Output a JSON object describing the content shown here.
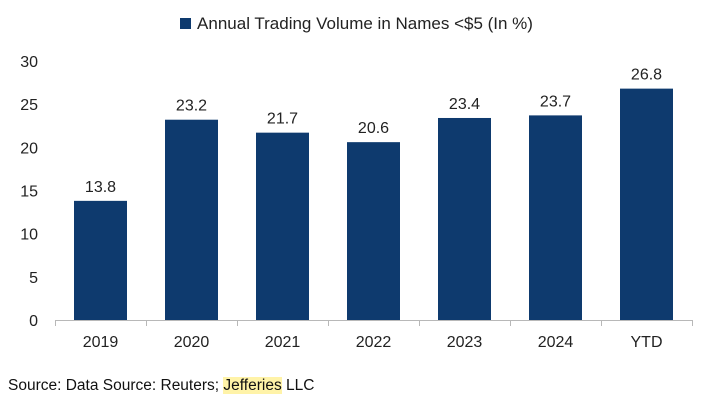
{
  "chart_data": {
    "type": "bar",
    "title": "",
    "legend": {
      "label": "Annual Trading Volume in Names <$5 (In %)",
      "position": "top"
    },
    "categories": [
      "2019",
      "2020",
      "2021",
      "2022",
      "2023",
      "2024",
      "YTD"
    ],
    "series": [
      {
        "name": "Annual Trading Volume in Names <$5 (In %)",
        "values": [
          13.8,
          23.2,
          21.7,
          20.6,
          23.4,
          23.7,
          26.8
        ]
      }
    ],
    "data_labels": [
      "13.8",
      "23.2",
      "21.7",
      "20.6",
      "23.4",
      "23.7",
      "26.8"
    ],
    "y_ticks": [
      "0",
      "5",
      "10",
      "15",
      "20",
      "25",
      "30"
    ],
    "ylim": [
      0,
      30
    ],
    "xlabel": "",
    "ylabel": "",
    "grid": false,
    "bar_color": "#0e3a6e"
  },
  "source": {
    "prefix": "Source: Data Source: Reuters; ",
    "highlight": "Jefferies",
    "suffix": " LLC",
    "highlight_color": "#fff3a8"
  }
}
